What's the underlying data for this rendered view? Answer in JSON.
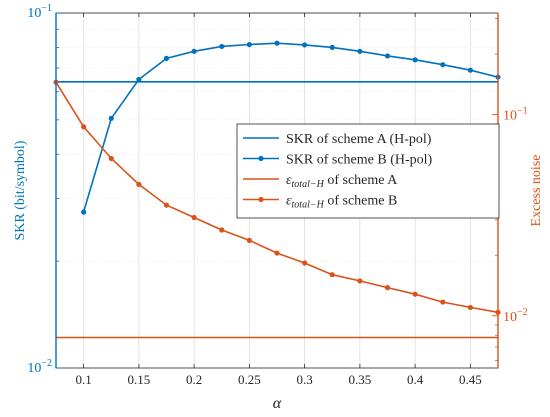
{
  "chart_data": {
    "type": "line",
    "xlabel": "α",
    "ylabel_left": "SKR (bit/symbol)",
    "ylabel_right": "Excess noise",
    "x_ticks": [
      "0.1",
      "0.15",
      "0.2",
      "0.25",
      "0.3",
      "0.35",
      "0.4",
      "0.45"
    ],
    "x_tick_values": [
      0.1,
      0.15,
      0.2,
      0.25,
      0.3,
      0.35,
      0.4,
      0.45
    ],
    "xlim": [
      0.075,
      0.475
    ],
    "left_axis": {
      "scale": "log",
      "ylim": [
        0.01,
        0.1
      ],
      "tick_base": "10",
      "tick_exps": [
        "−1",
        "−2"
      ],
      "color": "#0072BD"
    },
    "right_axis": {
      "scale": "log",
      "ylim": [
        0.0055,
        0.32
      ],
      "tick_base": "10",
      "tick_exps": [
        "−1",
        "−2"
      ],
      "tick_values": [
        0.1,
        0.01
      ],
      "color": "#D95319"
    },
    "grid": true,
    "legend_position": "right-middle",
    "legend": [
      {
        "label_main": "SKR of scheme A (H-pol)",
        "label_suffix": ""
      },
      {
        "label_main": "SKR of scheme B (H-pol)",
        "label_suffix": ""
      },
      {
        "label_main": "ε",
        "label_sub": "total−H",
        "label_suffix": " of scheme A"
      },
      {
        "label_main": "ε",
        "label_sub": "total−H",
        "label_suffix": " of scheme B"
      }
    ],
    "series": [
      {
        "axis": "left",
        "color": "#0072BD",
        "marker": "none",
        "x": [
          0.075,
          0.475
        ],
        "y": [
          0.064,
          0.064
        ]
      },
      {
        "axis": "left",
        "color": "#0072BD",
        "marker": "dot",
        "x": [
          0.1,
          0.125,
          0.15,
          0.175,
          0.2,
          0.225,
          0.25,
          0.275,
          0.3,
          0.325,
          0.35,
          0.375,
          0.4,
          0.425,
          0.45,
          0.475
        ],
        "y": [
          0.0275,
          0.0505,
          0.065,
          0.0745,
          0.078,
          0.0805,
          0.0815,
          0.0822,
          0.0813,
          0.08,
          0.078,
          0.0757,
          0.0738,
          0.0715,
          0.069,
          0.066
        ]
      },
      {
        "axis": "right",
        "color": "#D95319",
        "marker": "none",
        "x": [
          0.075,
          0.475
        ],
        "y": [
          0.0078,
          0.0078
        ]
      },
      {
        "axis": "right",
        "color": "#D95319",
        "marker": "dot",
        "x": [
          0.075,
          0.1,
          0.125,
          0.15,
          0.175,
          0.2,
          0.225,
          0.25,
          0.275,
          0.3,
          0.325,
          0.35,
          0.375,
          0.4,
          0.425,
          0.45,
          0.475
        ],
        "y": [
          0.145,
          0.087,
          0.0605,
          0.045,
          0.0355,
          0.0308,
          0.0267,
          0.0237,
          0.0205,
          0.0183,
          0.016,
          0.0149,
          0.0138,
          0.0128,
          0.0117,
          0.011,
          0.0104
        ]
      }
    ]
  }
}
